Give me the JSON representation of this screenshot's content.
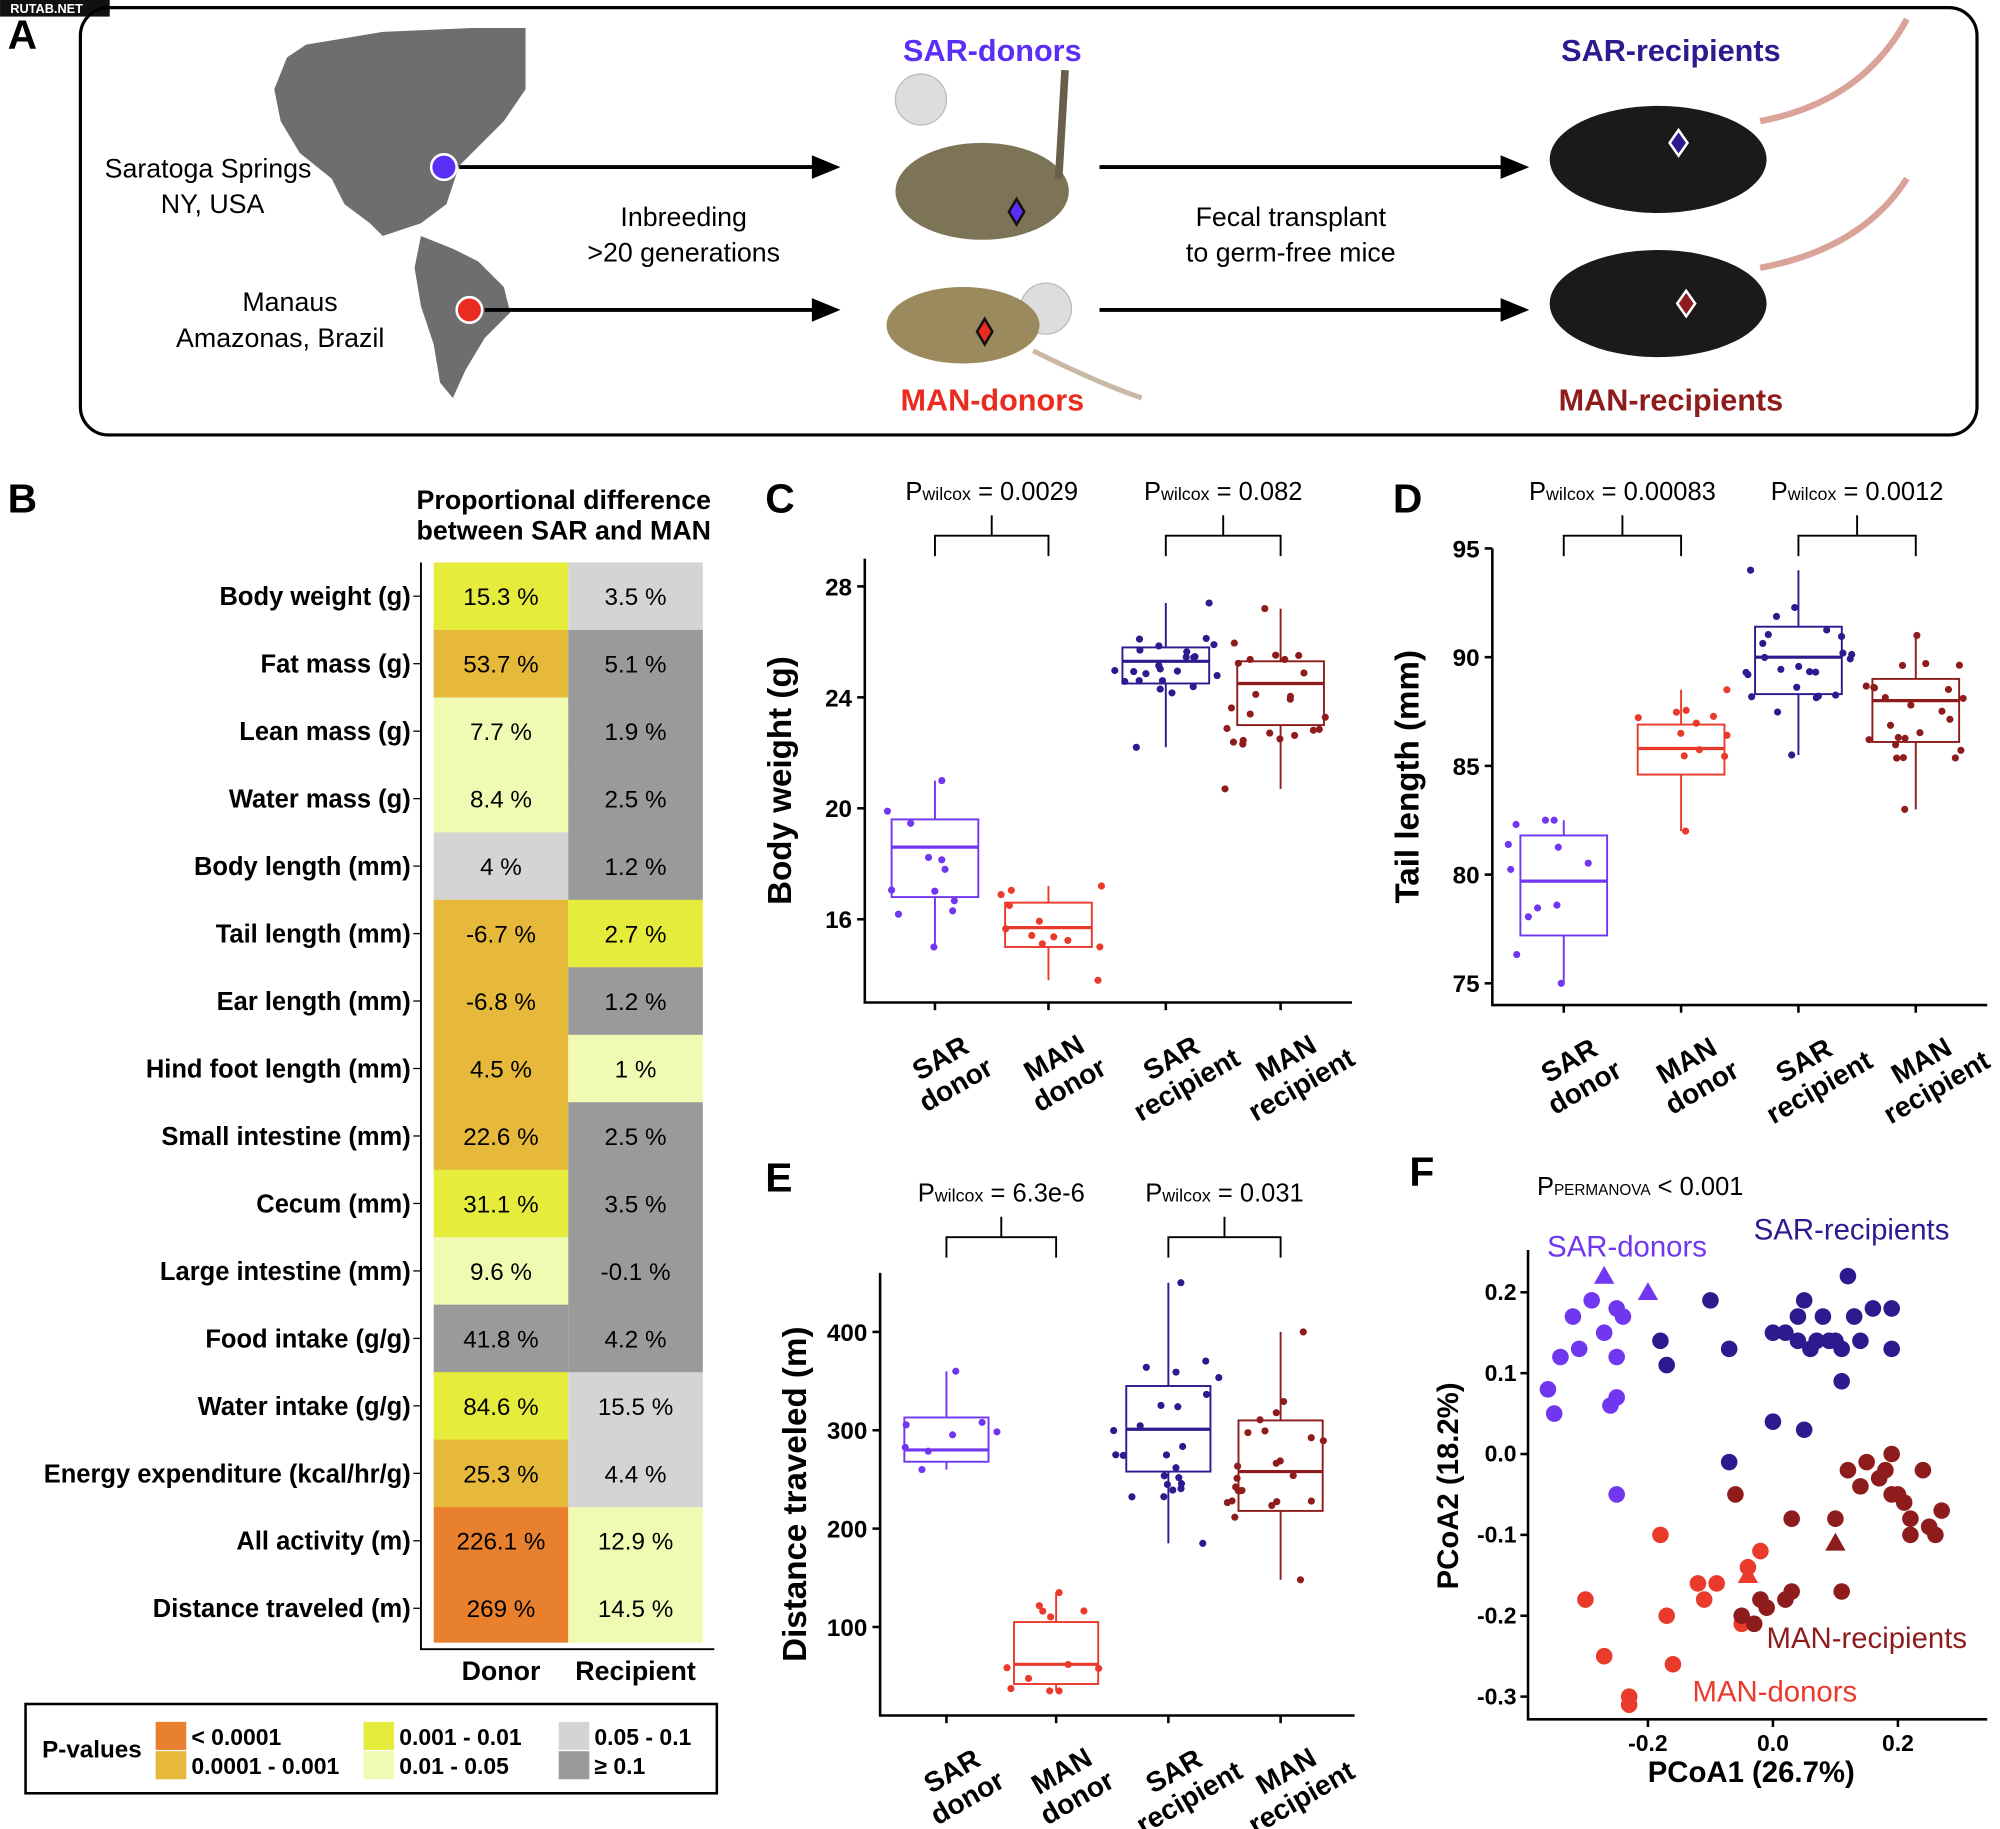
{
  "watermark": "RUTAB.NET",
  "panels": {
    "A": "A",
    "B": "B",
    "C": "C",
    "D": "D",
    "E": "E",
    "F": "F"
  },
  "panelA": {
    "origin1": "Saratoga Springs",
    "origin1b": "NY, USA",
    "origin2": "Manaus",
    "origin2b": "Amazonas, Brazil",
    "step1": "Inbreeding",
    "step1b": ">20 generations",
    "step2": "Fecal transplant",
    "step2b": "to germ-free mice",
    "sar_donors": "SAR-donors",
    "man_donors": "MAN-donors",
    "sar_recipients": "SAR-recipients",
    "man_recipients": "MAN-recipients"
  },
  "colors": {
    "sar_donor": "#7136f0",
    "man_donor": "#ea3a2c",
    "sar_recipient": "#2c1a8e",
    "man_recipient": "#8e1c1c",
    "map": "#6e6e6e"
  },
  "heatmap": {
    "title1": "Proportional difference",
    "title2": "between SAR and MAN",
    "columns": [
      "Donor",
      "Recipient"
    ],
    "rows": [
      {
        "label": "Body weight (g)",
        "donor": "15.3 %",
        "dp": "0.001 - 0.01",
        "recipient": "3.5 %",
        "rp": "0.05 - 0.1"
      },
      {
        "label": "Fat mass (g)",
        "donor": "53.7 %",
        "dp": "0.0001 - 0.001",
        "recipient": "5.1 %",
        "rp": "≥ 0.1"
      },
      {
        "label": "Lean mass (g)",
        "donor": "7.7 %",
        "dp": "0.01 - 0.05",
        "recipient": "1.9 %",
        "rp": "≥ 0.1"
      },
      {
        "label": "Water mass (g)",
        "donor": "8.4 %",
        "dp": "0.01 - 0.05",
        "recipient": "2.5 %",
        "rp": "≥ 0.1"
      },
      {
        "label": "Body length (mm)",
        "donor": "4 %",
        "dp": "0.05 - 0.1",
        "recipient": "1.2 %",
        "rp": "≥ 0.1"
      },
      {
        "label": "Tail length (mm)",
        "donor": "-6.7 %",
        "dp": "0.0001 - 0.001",
        "recipient": "2.7 %",
        "rp": "0.001 - 0.01"
      },
      {
        "label": "Ear length (mm)",
        "donor": "-6.8 %",
        "dp": "0.0001 - 0.001",
        "recipient": "1.2 %",
        "rp": "≥ 0.1"
      },
      {
        "label": "Hind foot length (mm)",
        "donor": "4.5 %",
        "dp": "0.0001 - 0.001",
        "recipient": "1 %",
        "rp": "0.01 - 0.05"
      },
      {
        "label": "Small intestine (mm)",
        "donor": "22.6 %",
        "dp": "0.0001 - 0.001",
        "recipient": "2.5 %",
        "rp": "≥ 0.1"
      },
      {
        "label": "Cecum (mm)",
        "donor": "31.1 %",
        "dp": "0.001 - 0.01",
        "recipient": "3.5 %",
        "rp": "≥ 0.1"
      },
      {
        "label": "Large intestine (mm)",
        "donor": "9.6 %",
        "dp": "0.01 - 0.05",
        "recipient": "-0.1 %",
        "rp": "≥ 0.1"
      },
      {
        "label": "Food intake (g/g)",
        "donor": "41.8 %",
        "dp": "≥ 0.1",
        "recipient": "4.2 %",
        "rp": "≥ 0.1"
      },
      {
        "label": "Water intake (g/g)",
        "donor": "84.6 %",
        "dp": "0.001 - 0.01",
        "recipient": "15.5 %",
        "rp": "0.05 - 0.1"
      },
      {
        "label": "Energy expenditure (kcal/hr/g)",
        "donor": "25.3 %",
        "dp": "0.0001 - 0.001",
        "recipient": "4.4 %",
        "rp": "0.05 - 0.1"
      },
      {
        "label": "All activity (m)",
        "donor": "226.1 %",
        "dp": "< 0.0001",
        "recipient": "12.9 %",
        "rp": "0.01 - 0.05"
      },
      {
        "label": "Distance traveled (m)",
        "donor": "269 %",
        "dp": "< 0.0001",
        "recipient": "14.5 %",
        "rp": "0.01 - 0.05"
      }
    ],
    "legend_title": "P-values",
    "legend": [
      {
        "label": "< 0.0001",
        "color": "#e8802e"
      },
      {
        "label": "0.0001 - 0.001",
        "color": "#e6b93a"
      },
      {
        "label": "0.001 - 0.01",
        "color": "#e6ec3c"
      },
      {
        "label": "0.01 - 0.05",
        "color": "#f1fab2"
      },
      {
        "label": "0.05 - 0.1",
        "color": "#d4d4d4"
      },
      {
        "label": "≥ 0.1",
        "color": "#9a9a9a"
      }
    ]
  },
  "chart_data": [
    {
      "panel": "C",
      "type": "box",
      "ylabel": "Body weight (g)",
      "yticks": [
        16,
        20,
        24,
        28
      ],
      "ylim": [
        13,
        29
      ],
      "categories": [
        "SAR donor",
        "MAN donor",
        "SAR recipient",
        "MAN recipient"
      ],
      "boxes": [
        {
          "min": 15,
          "q1": 16.8,
          "median": 18.6,
          "q3": 19.6,
          "max": 21,
          "n": 12
        },
        {
          "min": 13.8,
          "q1": 15,
          "median": 15.7,
          "q3": 16.6,
          "max": 17.2,
          "n": 12
        },
        {
          "min": 22.2,
          "q1": 24.5,
          "median": 25.3,
          "q3": 25.8,
          "max": 27.4,
          "n": 24
        },
        {
          "min": 20.7,
          "q1": 23,
          "median": 24.5,
          "q3": 25.3,
          "max": 27.2,
          "n": 24
        }
      ],
      "pvalues": [
        {
          "p": "P",
          "sub": "wilcox",
          "value": " = 0.0029"
        },
        {
          "p": "P",
          "sub": "wilcox",
          "value": " = 0.082"
        }
      ]
    },
    {
      "panel": "D",
      "type": "box",
      "ylabel": "Tail length (mm)",
      "yticks": [
        75,
        80,
        85,
        90,
        95
      ],
      "ylim": [
        74,
        95
      ],
      "categories": [
        "SAR donor",
        "MAN donor",
        "SAR recipient",
        "MAN recipient"
      ],
      "boxes": [
        {
          "min": 75,
          "q1": 77.2,
          "median": 79.7,
          "q3": 81.8,
          "max": 82.5,
          "n": 12
        },
        {
          "min": 82,
          "q1": 84.6,
          "median": 85.8,
          "q3": 86.9,
          "max": 88.5,
          "n": 12
        },
        {
          "min": 85.5,
          "q1": 88.3,
          "median": 90,
          "q3": 91.4,
          "max": 94,
          "n": 24
        },
        {
          "min": 83,
          "q1": 86.1,
          "median": 88,
          "q3": 89,
          "max": 91,
          "n": 24
        }
      ],
      "pvalues": [
        {
          "p": "P",
          "sub": "wilcox",
          "value": " = 0.00083"
        },
        {
          "p": "P",
          "sub": "wilcox",
          "value": " = 0.0012"
        }
      ]
    },
    {
      "panel": "E",
      "type": "box",
      "ylabel": "Distance traveled (m)",
      "yticks": [
        100,
        200,
        300,
        400
      ],
      "ylim": [
        10,
        460
      ],
      "categories": [
        "SAR donor",
        "MAN donor",
        "SAR recipient",
        "MAN recipient"
      ],
      "boxes": [
        {
          "min": 260,
          "q1": 268,
          "median": 280,
          "q3": 313,
          "max": 360,
          "n": 8
        },
        {
          "min": 35,
          "q1": 42,
          "median": 62,
          "q3": 105,
          "max": 135,
          "n": 12
        },
        {
          "min": 185,
          "q1": 258,
          "median": 301,
          "q3": 345,
          "max": 450,
          "n": 24
        },
        {
          "min": 148,
          "q1": 218,
          "median": 258,
          "q3": 310,
          "max": 400,
          "n": 24
        }
      ],
      "pvalues": [
        {
          "p": "P",
          "sub": "wilcox",
          "value": " = 6.3e-6"
        },
        {
          "p": "P",
          "sub": "wilcox",
          "value": " = 0.031"
        }
      ]
    },
    {
      "panel": "F",
      "type": "scatter",
      "xlabel": "PCoA1 (26.7%)",
      "ylabel": "PCoA2 (18.2%)",
      "xticks": [
        -0.2,
        0.0,
        0.2
      ],
      "yticks": [
        -0.3,
        -0.2,
        -0.1,
        0.0,
        0.1,
        0.2
      ],
      "xlim": [
        -0.39,
        0.35
      ],
      "ylim": [
        -0.33,
        0.24
      ],
      "annotation": {
        "p": "P",
        "sub": "PERMANOVA",
        "value": " < 0.001"
      },
      "series": [
        {
          "name": "SAR-donors",
          "points": [
            [
              -0.36,
              0.08
            ],
            [
              -0.35,
              0.05
            ],
            [
              -0.34,
              0.12
            ],
            [
              -0.32,
              0.17
            ],
            [
              -0.31,
              0.13
            ],
            [
              -0.29,
              0.19
            ],
            [
              -0.27,
              0.15
            ],
            [
              -0.26,
              0.06
            ],
            [
              -0.25,
              0.12
            ],
            [
              -0.25,
              0.18
            ],
            [
              -0.24,
              0.17
            ],
            [
              -0.25,
              0.07
            ],
            [
              -0.25,
              -0.05
            ]
          ],
          "triangles": [
            [
              -0.27,
              0.22
            ],
            [
              -0.2,
              0.2
            ]
          ]
        },
        {
          "name": "SAR-recipients",
          "points": [
            [
              -0.18,
              0.14
            ],
            [
              -0.17,
              0.11
            ],
            [
              -0.1,
              0.19
            ],
            [
              -0.07,
              0.13
            ],
            [
              0.0,
              0.15
            ],
            [
              0.0,
              0.04
            ],
            [
              0.02,
              0.15
            ],
            [
              0.04,
              0.17
            ],
            [
              0.04,
              0.14
            ],
            [
              0.05,
              0.19
            ],
            [
              0.06,
              0.13
            ],
            [
              0.07,
              0.14
            ],
            [
              0.08,
              0.17
            ],
            [
              0.09,
              0.14
            ],
            [
              0.1,
              0.14
            ],
            [
              0.11,
              0.13
            ],
            [
              0.11,
              0.09
            ],
            [
              0.12,
              0.22
            ],
            [
              0.13,
              0.17
            ],
            [
              0.14,
              0.14
            ],
            [
              0.16,
              0.18
            ],
            [
              0.19,
              0.13
            ],
            [
              0.19,
              0.18
            ],
            [
              0.05,
              0.03
            ],
            [
              -0.07,
              -0.01
            ]
          ],
          "triangles": []
        },
        {
          "name": "MAN-donors",
          "points": [
            [
              -0.3,
              -0.18
            ],
            [
              -0.27,
              -0.25
            ],
            [
              -0.17,
              -0.2
            ],
            [
              -0.16,
              -0.26
            ],
            [
              -0.18,
              -0.1
            ],
            [
              -0.12,
              -0.16
            ],
            [
              -0.11,
              -0.18
            ],
            [
              -0.09,
              -0.16
            ],
            [
              -0.04,
              -0.14
            ],
            [
              -0.23,
              -0.3
            ],
            [
              -0.23,
              -0.31
            ],
            [
              -0.02,
              -0.12
            ],
            [
              -0.05,
              -0.21
            ]
          ],
          "triangles": [
            [
              -0.04,
              -0.15
            ]
          ]
        },
        {
          "name": "MAN-recipients",
          "points": [
            [
              -0.06,
              -0.05
            ],
            [
              -0.05,
              -0.2
            ],
            [
              -0.03,
              -0.21
            ],
            [
              -0.02,
              -0.18
            ],
            [
              -0.01,
              -0.19
            ],
            [
              0.02,
              -0.18
            ],
            [
              0.03,
              -0.17
            ],
            [
              0.03,
              -0.08
            ],
            [
              0.1,
              -0.08
            ],
            [
              0.11,
              -0.17
            ],
            [
              0.12,
              -0.02
            ],
            [
              0.14,
              -0.04
            ],
            [
              0.15,
              -0.01
            ],
            [
              0.17,
              -0.03
            ],
            [
              0.18,
              -0.02
            ],
            [
              0.19,
              0.0
            ],
            [
              0.19,
              -0.05
            ],
            [
              0.2,
              -0.05
            ],
            [
              0.21,
              -0.06
            ],
            [
              0.22,
              -0.08
            ],
            [
              0.24,
              -0.02
            ],
            [
              0.25,
              -0.09
            ],
            [
              0.26,
              -0.1
            ],
            [
              0.27,
              -0.07
            ],
            [
              0.22,
              -0.1
            ]
          ],
          "triangles": [
            [
              0.1,
              -0.11
            ]
          ]
        }
      ]
    }
  ]
}
